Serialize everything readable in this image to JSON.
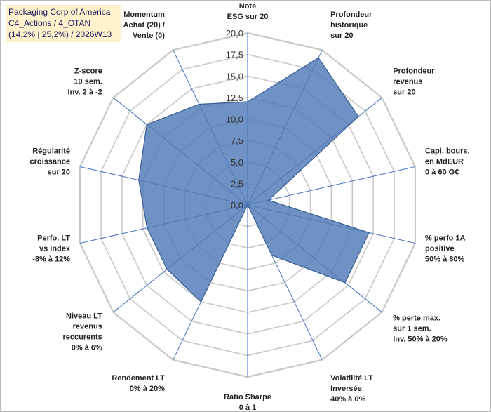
{
  "chart_data": {
    "type": "radar",
    "title": "Packaging Corp of America",
    "subtitle": [
      "C4_Actions / 4_OTAN",
      "(14,2% | 25,2%) / 2026W13"
    ],
    "rmax": 20,
    "tick_values": [
      0,
      2.5,
      5,
      7.5,
      10,
      12.5,
      15,
      17.5,
      20
    ],
    "tick_labels": [
      "0,0",
      "2,5",
      "5,0",
      "7,5",
      "10,0",
      "12,5",
      "15,0",
      "17,5",
      "20,0"
    ],
    "axes": [
      [
        "Note",
        "ESG sur 20"
      ],
      [
        "Profondeur",
        "historique",
        "sur 20"
      ],
      [
        "Profondeur",
        "revenus",
        "sur 20"
      ],
      [
        "Capi. bours.",
        "en MdEUR",
        "0 à 60 G€"
      ],
      [
        "% perfo 1A",
        "positive",
        "50% à 80%"
      ],
      [
        "% perte max.",
        "sur 1 sem.",
        "Inv. 50% à 20%"
      ],
      [
        "Volatilité LT",
        "Inversée",
        "40% à 0%"
      ],
      [
        "Ratio Sharpe",
        "0 à 1"
      ],
      [
        "Rendement LT",
        "0% à 20%"
      ],
      [
        "Niveau LT",
        "revenus",
        "reccurents",
        "0% à 6%"
      ],
      [
        "Perfo. LT",
        "vs Index",
        "-8% à 12%"
      ],
      [
        "Régularité",
        "croissance",
        "sur 20"
      ],
      [
        "Z-score",
        "10 sem.",
        "Inv. 2 à -2"
      ],
      [
        "Momentum",
        "Achat (20) /",
        "Vente (0)"
      ]
    ],
    "series": [
      {
        "name": "Packaging Corp of America",
        "values": [
          12,
          19,
          16.5,
          2.5,
          14.5,
          14.5,
          6.5,
          0,
          12.5,
          12,
          12,
          13,
          15,
          13
        ]
      }
    ],
    "colors": {
      "fill": "#4f79b6",
      "line": "#3a5f94",
      "grid": "#c8c8c8",
      "spoke": "#4472c4"
    }
  }
}
